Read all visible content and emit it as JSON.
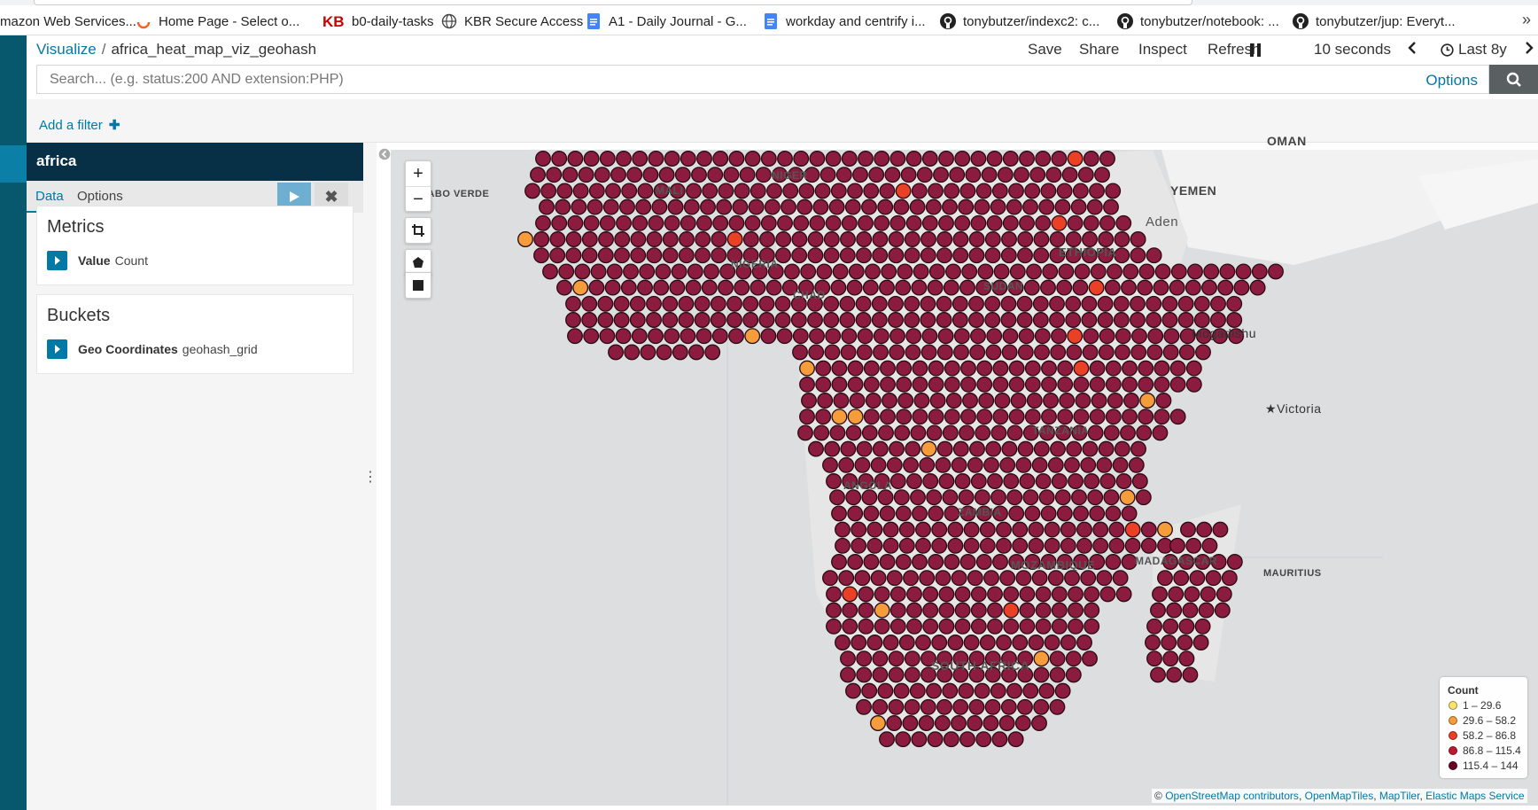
{
  "bookmarks": [
    {
      "label": "mazon Web Services...",
      "icon": "none"
    },
    {
      "label": "Home Page - Select o...",
      "icon": "swirl-icon"
    },
    {
      "label": "b0-daily-tasks",
      "icon": "kb-logo-icon"
    },
    {
      "label": "KBR Secure Access",
      "icon": "globe-icon"
    },
    {
      "label": "A1 - Daily Journal - G...",
      "icon": "google-docs-icon"
    },
    {
      "label": "workday and centrify i...",
      "icon": "google-docs-icon"
    },
    {
      "label": "tonybutzer/indexc2: c...",
      "icon": "github-icon"
    },
    {
      "label": "tonybutzer/notebook: ...",
      "icon": "github-icon"
    },
    {
      "label": "tonybutzer/jup: Everyt...",
      "icon": "github-icon"
    }
  ],
  "breadcrumb": {
    "root": "Visualize",
    "separator": "/",
    "current": "africa_heat_map_viz_geohash"
  },
  "topnav": {
    "save": "Save",
    "share": "Share",
    "inspect": "Inspect",
    "refresh": "Refresh",
    "interval": "10 seconds",
    "timerange": "Last 8y"
  },
  "search": {
    "placeholder": "Search... (e.g. status:200 AND extension:PHP)",
    "options": "Options"
  },
  "filter": {
    "add_label": "Add a filter"
  },
  "panel": {
    "title": "africa",
    "tabs": [
      "Data",
      "Options"
    ],
    "metrics": {
      "title": "Metrics",
      "agg_label": "Value",
      "agg_type": "Count"
    },
    "buckets": {
      "title": "Buckets",
      "agg_label": "Geo Coordinates",
      "agg_type": "geohash_grid"
    }
  },
  "map": {
    "labels": [
      "CABO VERDE",
      "YEMEN",
      "OMAN",
      "Aden",
      "Mogadishu",
      "Victoria",
      "MAURITIUS",
      "MOZAMBIQUE",
      "MADAGASCAR",
      "SOUTH AFRICA",
      "ETHIOPIA",
      "CHAD",
      "NIGER",
      "MALI",
      "NIGERIA",
      "SUDAN",
      "TANZANIA",
      "ZAMBIA",
      "ANGOLA"
    ],
    "legend": {
      "title": "Count",
      "ranges": [
        {
          "label": "1 – 29.6",
          "color": "#f7e36a"
        },
        {
          "label": "29.6 – 58.2",
          "color": "#f59d3a"
        },
        {
          "label": "58.2 – 86.8",
          "color": "#ea4025"
        },
        {
          "label": "86.8 – 115.4",
          "color": "#bd1a32"
        },
        {
          "label": "115.4 – 144",
          "color": "#6b0023"
        }
      ]
    },
    "attribution": {
      "prefix": "©",
      "links": [
        "OpenStreetMap contributors",
        "OpenMapTiles",
        "MapTiler",
        "Elastic Maps Service"
      ]
    },
    "dot_colors": {
      "dominant": "#8c1c3f",
      "medium": "#ea4025",
      "low": "#f59d3a"
    }
  }
}
